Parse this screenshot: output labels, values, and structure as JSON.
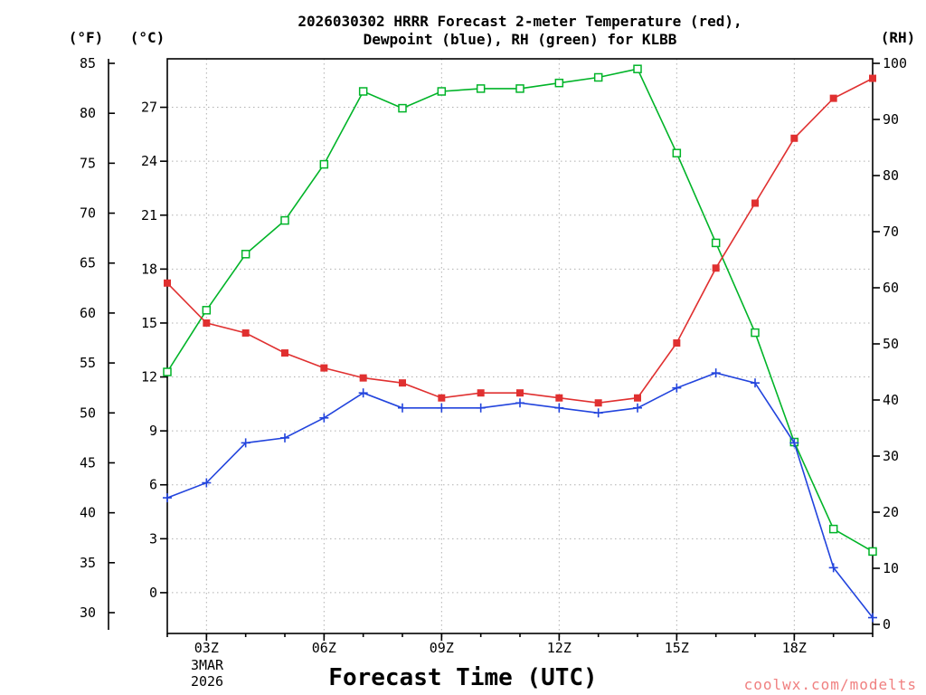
{
  "title": {
    "line1": "2026030302 HRRR Forecast 2-meter Temperature (red),",
    "line2": "Dewpoint (blue), RH (green) for KLBB"
  },
  "axes": {
    "left_outer_unit": "(°F)",
    "left_inner_unit": "(°C)",
    "right_unit": "(RH)",
    "fahrenheit_ticks": [
      85,
      80,
      75,
      70,
      65,
      60,
      55,
      50,
      45,
      40,
      35,
      30
    ],
    "celsius_ticks": [
      27,
      24,
      21,
      18,
      15,
      12,
      9,
      6,
      3,
      0
    ],
    "rh_ticks": [
      100,
      90,
      80,
      70,
      60,
      50,
      40,
      30,
      20,
      10,
      0
    ],
    "x_tick_hours": [
      3,
      6,
      9,
      12,
      15,
      18
    ],
    "x_tick_labels": [
      "03Z",
      "06Z",
      "09Z",
      "12Z",
      "15Z",
      "18Z"
    ],
    "x_date_line1": "3MAR",
    "x_date_line2": "2026",
    "x_title": "Forecast Time (UTC)"
  },
  "chart_data": {
    "type": "line",
    "station": "KLBB",
    "model_run": "2026030302",
    "x_hours_utc": [
      2,
      3,
      4,
      5,
      6,
      7,
      8,
      9,
      10,
      11,
      12,
      13,
      14,
      15,
      16,
      17,
      18,
      19,
      20
    ],
    "x_axis_range_hours": [
      2,
      20
    ],
    "y_left_fahrenheit_range": [
      30,
      85
    ],
    "y_left_celsius_range": [
      0,
      27
    ],
    "y_right_rh_range": [
      0,
      100
    ],
    "grid": true,
    "legend_position": "in-title",
    "series": [
      {
        "id": "rh",
        "name": "Relative Humidity",
        "unit": "%",
        "axis": "rh",
        "color": "#00b428",
        "marker": "square-open",
        "values": [
          45,
          56,
          66,
          72,
          82,
          95,
          92,
          95,
          95.5,
          95.5,
          96.5,
          97.5,
          99,
          84,
          68,
          52,
          32.5,
          17,
          13
        ]
      },
      {
        "id": "dewpoint",
        "name": "Dewpoint",
        "unit": "°F",
        "axis": "fahrenheit",
        "color": "#2244dd",
        "marker": "plus",
        "values": [
          41.5,
          43,
          47,
          47.5,
          49.5,
          52,
          50.5,
          50.5,
          50.5,
          51,
          50.5,
          50,
          50.5,
          52.5,
          54,
          53,
          47,
          34.5,
          29.5
        ]
      },
      {
        "id": "temperature",
        "name": "2-meter Temperature",
        "unit": "°F",
        "axis": "fahrenheit",
        "color": "#e03030",
        "marker": "square-filled",
        "values": [
          63,
          59,
          58,
          56,
          54.5,
          53.5,
          53,
          51.5,
          52,
          52,
          51.5,
          51,
          51.5,
          57,
          64.5,
          71,
          77.5,
          81.5,
          83.5
        ]
      }
    ]
  },
  "watermark": "coolwx.com/modelts",
  "colors": {
    "temperature": "#e03030",
    "dewpoint": "#2244dd",
    "rh": "#00b428",
    "grid": "#b0b0b0",
    "watermark": "#f08080",
    "background": "#ffffff"
  }
}
